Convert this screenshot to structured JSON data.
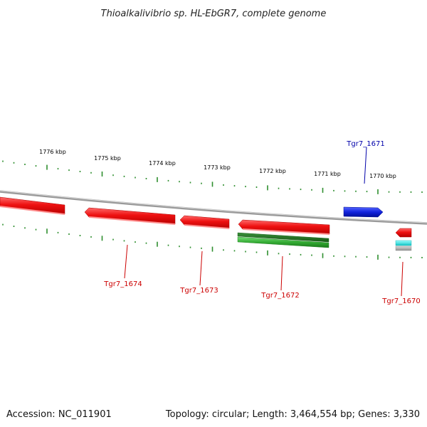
{
  "title": "Thioalkalivibrio sp. HL-EbGR7, complete genome",
  "accession": "Accession: NC_011901",
  "summary": "Topology: circular; Length: 3,464,554 bp; Genes: 3,330",
  "colors": {
    "backbone": "#8a8a8a",
    "ticks": "#2f8f2f",
    "gene_red": "#ee1111",
    "gene_blue": "#1122dd",
    "gene_green": "#33aa33",
    "gene_cyan": "#22dddd",
    "gene_gray": "#aaaaaa",
    "label_red": "#cc0000",
    "label_blue": "#0000aa"
  },
  "kbp_labels": [
    {
      "id": "kbp-1776",
      "text": "1776 kbp"
    },
    {
      "id": "kbp-1775",
      "text": "1775 kbp"
    },
    {
      "id": "kbp-1774",
      "text": "1774 kbp"
    },
    {
      "id": "kbp-1773",
      "text": "1773 kbp"
    },
    {
      "id": "kbp-1772",
      "text": "1772 kbp"
    },
    {
      "id": "kbp-1771",
      "text": "1771 kbp"
    },
    {
      "id": "kbp-1770",
      "text": "1770 kbp"
    }
  ],
  "genes": [
    {
      "id": "tgr7-1671",
      "label": "Tgr7_1671",
      "color": "blue"
    },
    {
      "id": "tgr7-1674",
      "label": "Tgr7_1674",
      "color": "red"
    },
    {
      "id": "tgr7-1673",
      "label": "Tgr7_1673",
      "color": "red"
    },
    {
      "id": "tgr7-1672",
      "label": "Tgr7_1672",
      "color": "red"
    },
    {
      "id": "tgr7-1670",
      "label": "Tgr7_1670",
      "color": "red"
    }
  ]
}
